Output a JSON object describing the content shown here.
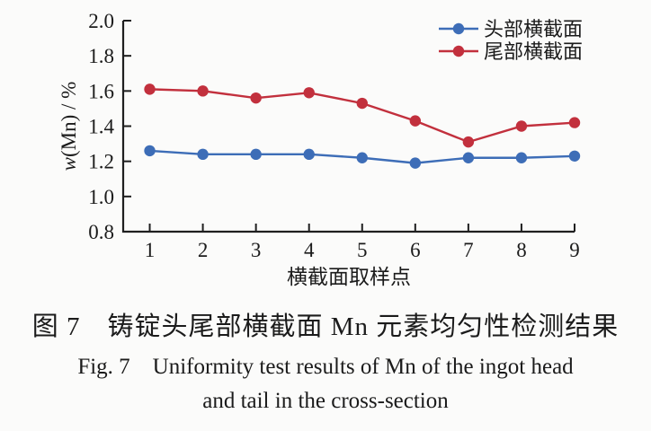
{
  "chart_data": {
    "type": "line",
    "x": [
      1,
      2,
      3,
      4,
      5,
      6,
      7,
      8,
      9
    ],
    "series": [
      {
        "name": "头部横截面",
        "color": "#3d6db7",
        "values": [
          1.26,
          1.24,
          1.24,
          1.24,
          1.22,
          1.19,
          1.22,
          1.22,
          1.23
        ]
      },
      {
        "name": "尾部横截面",
        "color": "#c2303d",
        "values": [
          1.61,
          1.6,
          1.56,
          1.59,
          1.53,
          1.43,
          1.31,
          1.4,
          1.42
        ]
      }
    ],
    "title": "",
    "xlabel": "横截面取样点",
    "ylabel_italic": "w",
    "ylabel_rest": "(Mn) / %",
    "xticks": [
      1,
      2,
      3,
      4,
      5,
      6,
      7,
      8,
      9
    ],
    "yticks": [
      0.8,
      1.0,
      1.2,
      1.4,
      1.6,
      1.8,
      2.0
    ],
    "xlim": [
      0.5,
      9.0
    ],
    "ylim": [
      0.8,
      2.0
    ],
    "grid": false,
    "legend_position": "top-right",
    "marker": "circle"
  },
  "caption": {
    "zh": "图 7 铸锭头尾部横截面 Mn 元素均匀性检测结果",
    "en_line1": "Fig. 7 Uniformity test results of Mn of the ingot head",
    "en_line2": "and tail in the cross-section"
  },
  "colors": {
    "axis": "#1f1f1f",
    "text": "#1b1b1b",
    "background": "#fbfbfa"
  }
}
